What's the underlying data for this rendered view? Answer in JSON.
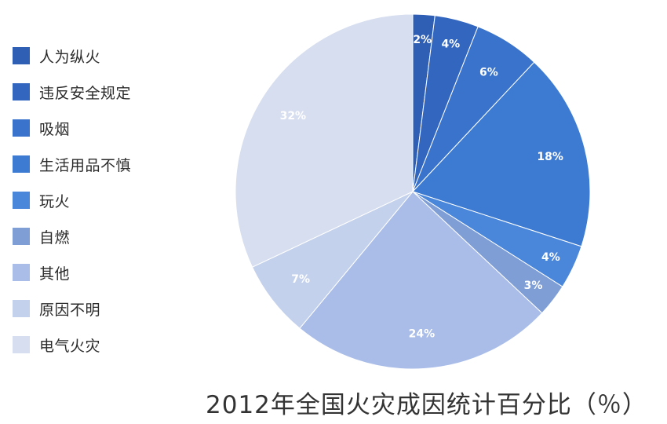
{
  "chart_data": {
    "type": "pie",
    "title": "2012年全国火灾成因统计百分比（％）",
    "slices": [
      {
        "label": "人为纵火",
        "value": 2,
        "display": "2%",
        "color": "#2e5fb5"
      },
      {
        "label": "违反安全规定",
        "value": 4,
        "display": "4%",
        "color": "#3367bf"
      },
      {
        "label": "吸烟",
        "value": 6,
        "display": "6%",
        "color": "#3a73cc"
      },
      {
        "label": "生活用品不慎",
        "value": 18,
        "display": "18%",
        "color": "#3d7bd3"
      },
      {
        "label": "玩火",
        "value": 4,
        "display": "4%",
        "color": "#4a86da"
      },
      {
        "label": "自燃",
        "value": 3,
        "display": "3%",
        "color": "#7f9ed6"
      },
      {
        "label": "其他",
        "value": 24,
        "display": "24%",
        "color": "#a9bde8"
      },
      {
        "label": "原因不明",
        "value": 7,
        "display": "7%",
        "color": "#c4d1ec"
      },
      {
        "label": "电气火灾",
        "value": 32,
        "display": "32%",
        "color": "#d6deef"
      }
    ],
    "legend_position": "left"
  }
}
